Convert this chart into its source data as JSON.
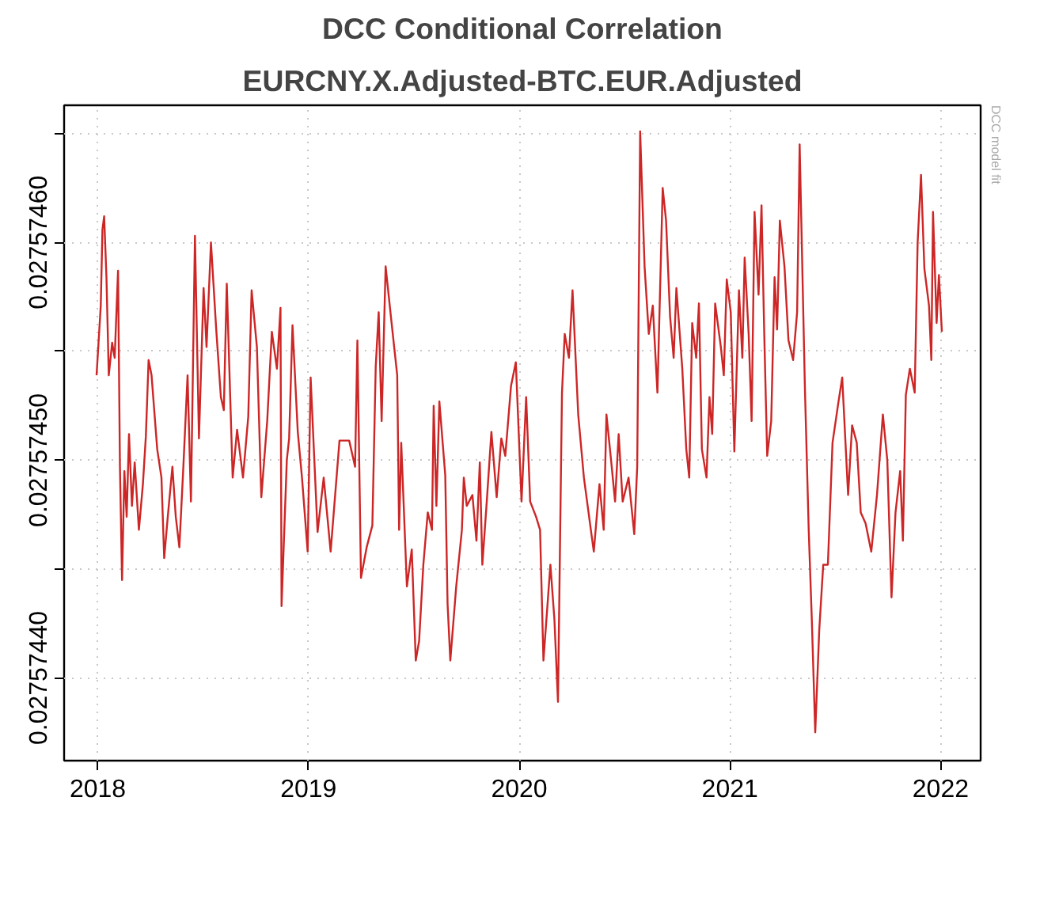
{
  "chart_data": {
    "type": "line",
    "title": "DCC Conditional Correlation",
    "subtitle": "EURCNY.X.Adjusted-BTC.EUR.Adjusted",
    "annotations": [
      "DCC model fit"
    ],
    "x": [
      2017.994,
      2018.014,
      2018.022,
      2018.03,
      2018.041,
      2018.052,
      2018.068,
      2018.08,
      2018.096,
      2018.105,
      2018.115,
      2018.126,
      2018.137,
      2018.148,
      2018.162,
      2018.175,
      2018.195,
      2018.214,
      2018.228,
      2018.241,
      2018.255,
      2018.282,
      2018.302,
      2018.315,
      2018.332,
      2018.354,
      2018.37,
      2018.387,
      2018.406,
      2018.426,
      2018.442,
      2018.461,
      2018.48,
      2018.502,
      2018.516,
      2018.537,
      2018.562,
      2018.584,
      2018.598,
      2018.612,
      2018.64,
      2018.661,
      2018.689,
      2018.714,
      2018.73,
      2018.755,
      2018.776,
      2018.804,
      2018.826,
      2018.85,
      2018.867,
      2018.872,
      2018.897,
      2018.908,
      2018.924,
      2018.949,
      2018.969,
      2018.996,
      2019.01,
      2019.043,
      2019.072,
      2019.105,
      2019.147,
      2019.193,
      2019.221,
      2019.232,
      2019.249,
      2019.276,
      2019.303,
      2019.319,
      2019.333,
      2019.347,
      2019.366,
      2019.391,
      2019.421,
      2019.43,
      2019.44,
      2019.467,
      2019.49,
      2019.509,
      2019.525,
      2019.545,
      2019.566,
      2019.586,
      2019.594,
      2019.607,
      2019.621,
      2019.649,
      2019.66,
      2019.673,
      2019.701,
      2019.728,
      2019.737,
      2019.751,
      2019.778,
      2019.797,
      2019.813,
      2019.825,
      2019.846,
      2019.868,
      2019.893,
      2019.915,
      2019.934,
      2019.961,
      2019.984,
      2020.011,
      2020.033,
      2020.052,
      2020.08,
      2020.099,
      2020.115,
      2020.148,
      2020.167,
      2020.184,
      2020.203,
      2020.216,
      2020.236,
      2020.253,
      2020.28,
      2020.307,
      2020.34,
      2020.354,
      2020.381,
      2020.401,
      2020.414,
      2020.436,
      2020.455,
      2020.472,
      2020.491,
      2020.519,
      2020.546,
      2020.56,
      2020.574,
      2020.595,
      2020.615,
      2020.634,
      2020.656,
      2020.681,
      2020.697,
      2020.716,
      2020.733,
      2020.746,
      2020.774,
      2020.793,
      2020.807,
      2020.821,
      2020.84,
      2020.853,
      2020.867,
      2020.889,
      2020.903,
      2020.916,
      2020.93,
      2020.957,
      2020.971,
      2020.985,
      2021.004,
      2021.021,
      2021.043,
      2021.059,
      2021.07,
      2021.089,
      2021.103,
      2021.117,
      2021.136,
      2021.15,
      2021.163,
      2021.177,
      2021.196,
      2021.212,
      2021.224,
      2021.237,
      2021.259,
      2021.278,
      2021.3,
      2021.319,
      2021.331,
      2021.356,
      2021.374,
      2021.389,
      2021.405,
      2021.424,
      2021.443,
      2021.465,
      2021.487,
      2021.514,
      2021.533,
      2021.561,
      2021.58,
      2021.602,
      2021.621,
      2021.644,
      2021.671,
      2021.698,
      2021.726,
      2021.747,
      2021.767,
      2021.786,
      2021.808,
      2021.821,
      2021.835,
      2021.854,
      2021.877,
      2021.891,
      2021.907,
      2021.923,
      2021.945,
      2021.956,
      2021.964,
      2021.981,
      2021.992,
      2022.006
    ],
    "series": [
      {
        "color": "#cd2626",
        "values": [
          0.027574539,
          0.027574571,
          0.027574606,
          0.027574612,
          0.027574584,
          0.027574539,
          0.027574554,
          0.027574547,
          0.027574587,
          0.027574497,
          0.027574445,
          0.027574495,
          0.027574474,
          0.027574512,
          0.027574479,
          0.027574499,
          0.027574468,
          0.027574489,
          0.027574511,
          0.027574546,
          0.027574539,
          0.027574505,
          0.027574492,
          0.027574455,
          0.027574474,
          0.027574497,
          0.027574474,
          0.02757446,
          0.027574497,
          0.027574539,
          0.027574481,
          0.027574603,
          0.02757451,
          0.027574579,
          0.027574552,
          0.0275746,
          0.02757456,
          0.027574529,
          0.027574523,
          0.027574581,
          0.027574492,
          0.027574514,
          0.027574492,
          0.02757452,
          0.027574578,
          0.027574552,
          0.027574483,
          0.027574518,
          0.027574559,
          0.027574542,
          0.02757457,
          0.027574433,
          0.0275745,
          0.02757451,
          0.027574562,
          0.027574513,
          0.027574492,
          0.027574458,
          0.027574538,
          0.027574467,
          0.027574492,
          0.027574458,
          0.027574509,
          0.027574509,
          0.027574497,
          0.027574555,
          0.027574446,
          0.02757446,
          0.02757447,
          0.027574543,
          0.027574568,
          0.027574518,
          0.027574589,
          0.027574566,
          0.027574539,
          0.027574468,
          0.027574508,
          0.027574442,
          0.027574459,
          0.027574408,
          0.027574417,
          0.027574452,
          0.027574476,
          0.027574468,
          0.027574525,
          0.027574479,
          0.027574527,
          0.027574493,
          0.027574434,
          0.027574408,
          0.027574442,
          0.027574468,
          0.027574492,
          0.027574479,
          0.027574484,
          0.027574463,
          0.027574499,
          0.027574452,
          0.027574481,
          0.027574513,
          0.027574483,
          0.02757451,
          0.027574502,
          0.027574534,
          0.027574545,
          0.027574481,
          0.027574529,
          0.027574481,
          0.027574474,
          0.027574468,
          0.027574408,
          0.027574452,
          0.027574427,
          0.027574389,
          0.027574531,
          0.027574558,
          0.027574547,
          0.027574578,
          0.027574521,
          0.027574492,
          0.027574468,
          0.027574458,
          0.027574489,
          0.027574468,
          0.027574521,
          0.0275745,
          0.027574481,
          0.027574512,
          0.027574481,
          0.027574492,
          0.027574466,
          0.027574497,
          0.027574651,
          0.027574589,
          0.027574558,
          0.027574571,
          0.027574531,
          0.027574625,
          0.02757461,
          0.027574566,
          0.027574547,
          0.027574579,
          0.027574542,
          0.027574505,
          0.027574492,
          0.027574563,
          0.027574547,
          0.027574572,
          0.027574505,
          0.027574492,
          0.027574529,
          0.027574512,
          0.027574572,
          0.027574552,
          0.027574539,
          0.027574583,
          0.027574568,
          0.027574504,
          0.027574578,
          0.027574547,
          0.027574593,
          0.027574558,
          0.027574518,
          0.027574614,
          0.027574576,
          0.027574617,
          0.027574558,
          0.027574502,
          0.027574518,
          0.027574584,
          0.02757456,
          0.02757461,
          0.027574589,
          0.027574555,
          0.027574546,
          0.027574568,
          0.027574645,
          0.027574533,
          0.027574468,
          0.027574426,
          0.027574375,
          0.027574422,
          0.027574452,
          0.027574452,
          0.027574508,
          0.027574526,
          0.027574538,
          0.027574484,
          0.027574516,
          0.027574508,
          0.027574476,
          0.027574471,
          0.027574458,
          0.027574484,
          0.027574521,
          0.0275745,
          0.027574437,
          0.027574476,
          0.027574495,
          0.027574463,
          0.02757453,
          0.027574542,
          0.027574531,
          0.0275746,
          0.027574631,
          0.027574588,
          0.027574571,
          0.027574546,
          0.027574614,
          0.027574563,
          0.027574585,
          0.027574559
        ]
      }
    ],
    "xlim": [
      2017.84,
      2022.19
    ],
    "ylim": [
      0.027574362,
      0.027574663
    ],
    "xticks": [
      2018,
      2019,
      2020,
      2021,
      2022
    ],
    "yticks": [
      {
        "value": 0.0275744,
        "label": "0.02757440"
      },
      {
        "value": 0.02757445,
        "label": null
      },
      {
        "value": 0.0275745,
        "label": "0.02757450"
      },
      {
        "value": 0.02757455,
        "label": null
      },
      {
        "value": 0.0275746,
        "label": "0.02757460"
      },
      {
        "value": 0.02757465,
        "label": null
      }
    ],
    "grid": true,
    "marker": "none",
    "line_style": "solid"
  }
}
